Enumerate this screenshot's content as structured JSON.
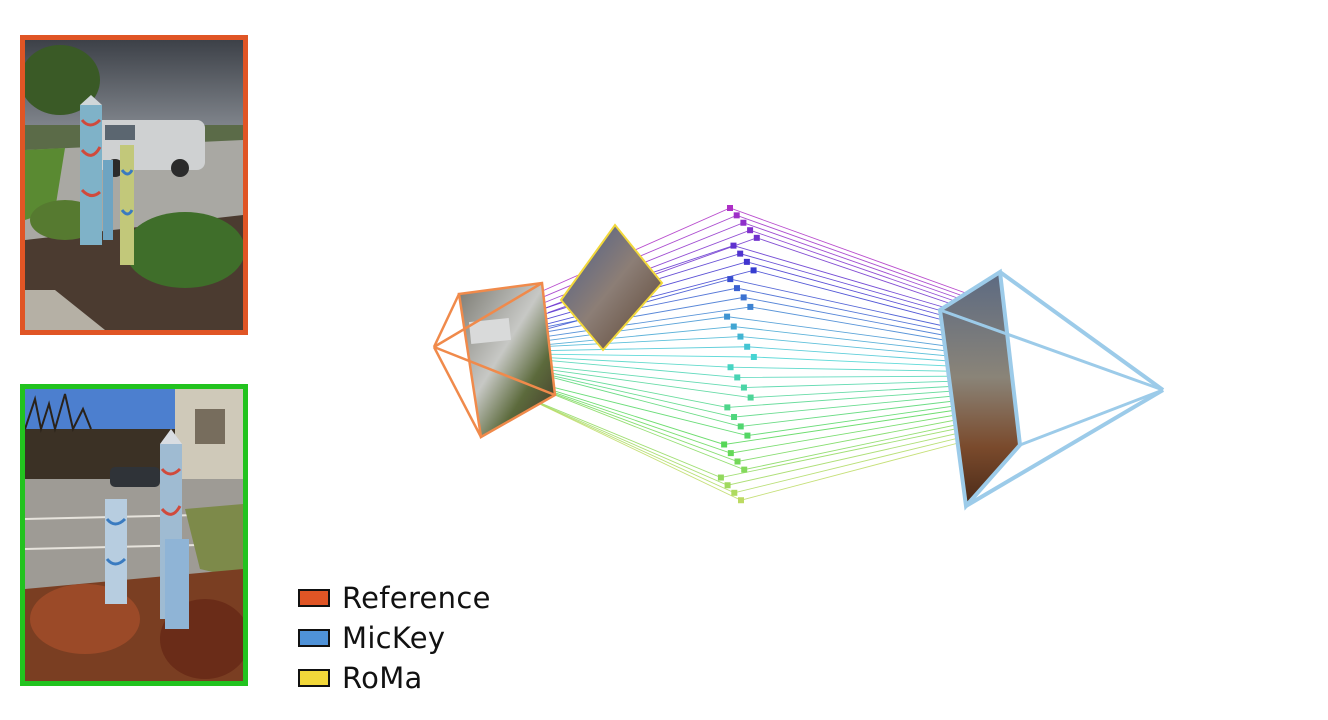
{
  "legend": {
    "items": [
      {
        "label": "Reference",
        "color": "#e05525"
      },
      {
        "label": "MicKey",
        "color": "#4f92d8"
      },
      {
        "label": "RoMa",
        "color": "#f2d83a"
      }
    ]
  },
  "thumbnails": {
    "reference_border": "#e05525",
    "query_border": "#22c31f"
  },
  "cameras": {
    "reference_color": "#f08a4b",
    "mickey_color": "#9ccbe9",
    "roma_color": "#f2d83a"
  }
}
